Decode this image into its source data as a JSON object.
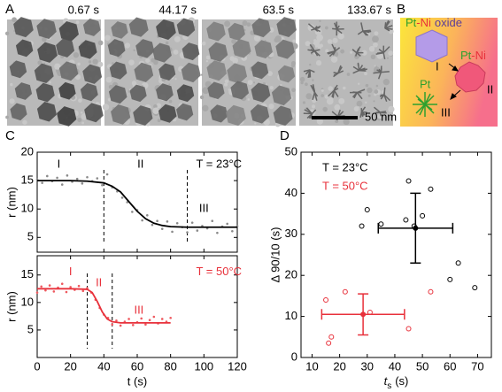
{
  "panel_labels": [
    "A",
    "B",
    "C",
    "D"
  ],
  "tem": {
    "times": [
      "0.67 s",
      "44.17 s",
      "63.5 s",
      "133.67 s"
    ],
    "scale_bar": "50 nm"
  },
  "schematic": {
    "oxide_label": [
      "Pt",
      "-Ni",
      "oxide"
    ],
    "alloy_label": [
      "Pt",
      "-Ni"
    ],
    "pt_label": "Pt",
    "stages": [
      "I",
      "II",
      "III"
    ]
  },
  "chart_data": [
    {
      "type": "scatter",
      "y_label": "r (nm)",
      "xlim": [
        0,
        120
      ],
      "xticks": [
        0,
        20,
        40,
        60,
        80,
        100,
        120
      ],
      "xtick_labels": false,
      "ylim": [
        2.4,
        20
      ],
      "yticks": [
        5,
        10,
        15,
        20
      ],
      "vlines": [
        40,
        90
      ],
      "annotations": [
        {
          "text": "I",
          "x": 13,
          "y": 17.8
        },
        {
          "text": "II",
          "x": 62,
          "y": 17.8
        },
        {
          "text": "III",
          "x": 100,
          "y": 10
        },
        {
          "text": "T = 23°C",
          "x": 109,
          "y": 17.8,
          "color": "#000000"
        }
      ],
      "series": [
        {
          "mode": "markers",
          "color": "#8a8a8a",
          "x": [
            0,
            3,
            6,
            9,
            12,
            15,
            18,
            21,
            24,
            27,
            30,
            33,
            36,
            39,
            42,
            45,
            48,
            51,
            54,
            57,
            60,
            63,
            66,
            69,
            72,
            75,
            78,
            81,
            84,
            87,
            90,
            93,
            96,
            99,
            102,
            105,
            108,
            111,
            114,
            117,
            120
          ],
          "values": [
            15.2,
            14.6,
            15.8,
            14.9,
            15.5,
            14.3,
            15.9,
            14.8,
            15.3,
            14.5,
            15.6,
            14.9,
            15.4,
            14.2,
            16.1,
            13.8,
            13.1,
            12.0,
            11.2,
            9.5,
            9.8,
            8.0,
            8.9,
            7.2,
            7.9,
            6.5,
            7.8,
            6.0,
            7.5,
            6.8,
            5.9,
            7.6,
            6.2,
            7.0,
            6.6,
            7.9,
            5.8,
            6.9,
            7.4,
            6.1,
            7.0
          ]
        },
        {
          "mode": "line",
          "color": "#000000",
          "x": [
            0,
            10,
            20,
            30,
            40,
            45,
            50,
            55,
            60,
            65,
            70,
            75,
            80,
            90,
            100,
            110,
            120
          ],
          "values": [
            15,
            15,
            15,
            14.9,
            14.6,
            14.0,
            13.0,
            11.3,
            9.6,
            8.3,
            7.5,
            7.1,
            6.9,
            6.8,
            6.8,
            6.8,
            6.8
          ]
        }
      ]
    },
    {
      "type": "scatter",
      "x_label": "t (s)",
      "y_label": "r (nm)",
      "xlim": [
        0,
        120
      ],
      "xticks": [
        0,
        20,
        40,
        60,
        80,
        100,
        120
      ],
      "xtick_labels": true,
      "ylim": [
        0,
        18.5
      ],
      "yticks": [
        5,
        10,
        15
      ],
      "vlines": [
        30,
        45
      ],
      "annotations": [
        {
          "text": "I",
          "x": 20,
          "y": 15.5,
          "color": "#e8313b"
        },
        {
          "text": "II",
          "x": 37,
          "y": 13.5,
          "color": "#e8313b"
        },
        {
          "text": "III",
          "x": 61,
          "y": 8.5,
          "color": "#e8313b"
        },
        {
          "text": "T = 50°C",
          "x": 109,
          "y": 15.5,
          "color": "#e8313b"
        }
      ],
      "series": [
        {
          "mode": "markers",
          "color": "#ef5a60",
          "x": [
            0,
            2.5,
            5,
            7.5,
            10,
            12.5,
            15,
            17.5,
            20,
            22.5,
            25,
            27.5,
            30,
            32.5,
            35,
            37.5,
            40,
            42.5,
            45,
            47.5,
            50,
            52.5,
            55,
            57.5,
            60,
            62.5,
            65,
            67.5,
            70,
            72.5,
            75,
            77.5,
            80
          ],
          "values": [
            11.8,
            12.9,
            12.2,
            13.1,
            12.0,
            12.7,
            13.4,
            11.9,
            12.8,
            12.3,
            13.0,
            12.1,
            12.6,
            11.8,
            10.5,
            9.0,
            7.8,
            7.2,
            6.0,
            6.7,
            5.8,
            6.5,
            7.0,
            5.9,
            6.4,
            7.1,
            6.0,
            6.8,
            7.4,
            6.2,
            7.0,
            6.5,
            7.2
          ]
        },
        {
          "mode": "line",
          "color": "#e8313b",
          "x": [
            0,
            10,
            20,
            30,
            33,
            36,
            39,
            42,
            45,
            50,
            60,
            70,
            80
          ],
          "values": [
            12.5,
            12.5,
            12.5,
            12.4,
            11.8,
            10.2,
            8.3,
            7.0,
            6.5,
            6.3,
            6.3,
            6.3,
            6.3
          ]
        }
      ]
    },
    {
      "type": "scatter",
      "x_label_symbol": "t",
      "x_label_sub": "s",
      "x_label_unit": "(s)",
      "y_label": "Δ 90/10 (s)",
      "xlim": [
        6,
        75
      ],
      "xticks": [
        10,
        20,
        30,
        40,
        50,
        60,
        70
      ],
      "xtick_labels": true,
      "ylim": [
        0,
        50
      ],
      "yticks": [
        0,
        10,
        20,
        30,
        40,
        50
      ],
      "series": [
        {
          "name": "T = 23°C",
          "mode": "open",
          "color": "#000000",
          "x": [
            28,
            30,
            35,
            44,
            45,
            47,
            50,
            53,
            60,
            63,
            69
          ],
          "values": [
            32,
            36,
            32.5,
            33.5,
            43,
            32,
            34.5,
            41,
            19,
            23,
            17
          ]
        },
        {
          "name": "T = 50°C",
          "mode": "open",
          "color": "#e8313b",
          "x": [
            15,
            16,
            17,
            22,
            31,
            45,
            53
          ],
          "values": [
            14,
            3.5,
            5,
            16,
            11,
            7,
            16
          ]
        },
        {
          "mode": "mean",
          "color": "#000000",
          "x": [
            47.5
          ],
          "values": [
            31.5
          ],
          "x_err": [
            13.5
          ],
          "y_err": [
            8.5
          ]
        },
        {
          "mode": "mean",
          "color": "#e8313b",
          "x": [
            28.5
          ],
          "values": [
            10.5
          ],
          "x_err": [
            15
          ],
          "y_err": [
            5
          ]
        }
      ]
    }
  ]
}
